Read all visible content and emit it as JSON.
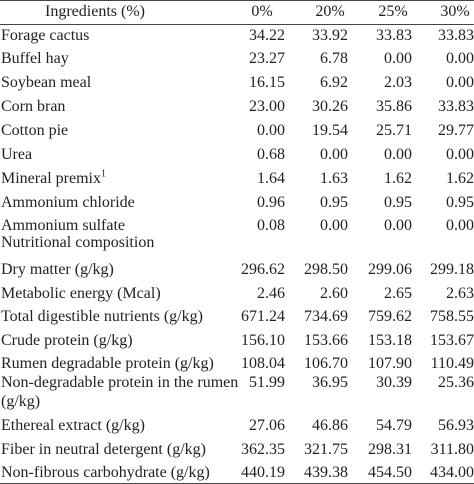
{
  "table": {
    "header": [
      "Ingredients (%)",
      "0%",
      "20%",
      "25%",
      "30%"
    ],
    "rows": [
      {
        "label": "Forage cactus",
        "values": [
          "34.22",
          "33.92",
          "33.83",
          "33.83"
        ]
      },
      {
        "label": "Buffel hay",
        "values": [
          "23.27",
          "6.78",
          "0.00",
          "0.00"
        ]
      },
      {
        "label": "Soybean meal",
        "values": [
          "16.15",
          "6.92",
          "2.03",
          "0.00"
        ]
      },
      {
        "label": "Corn bran",
        "values": [
          "23.00",
          "30.26",
          "35.86",
          "33.83"
        ]
      },
      {
        "label": "Cotton pie",
        "values": [
          "0.00",
          "19.54",
          "25.71",
          "29.77"
        ]
      },
      {
        "label": "Urea",
        "values": [
          "0.68",
          "0.00",
          "0.00",
          "0.00"
        ]
      },
      {
        "label": "Mineral premix",
        "note": "1",
        "values": [
          "1.64",
          "1.63",
          "1.62",
          "1.62"
        ]
      },
      {
        "label": "Ammonium chloride",
        "values": [
          "0.96",
          "0.95",
          "0.95",
          "0.95"
        ]
      },
      {
        "label": "Ammonium sulfate",
        "values": [
          "0.08",
          "0.00",
          "0.00",
          "0.00"
        ]
      },
      {
        "label": "Nutritional composition",
        "values": []
      },
      {
        "label": "Dry matter (g/kg)",
        "values": [
          "296.62",
          "298.50",
          "299.06",
          "299.18"
        ]
      },
      {
        "label": "Metabolic energy (Mcal)",
        "values": [
          "2.46",
          "2.60",
          "2.65",
          "2.63"
        ]
      },
      {
        "label": "Total digestible nutrients (g/kg)",
        "values": [
          "671.24",
          "734.69",
          "759.62",
          "758.55"
        ]
      },
      {
        "label": "Crude protein (g/kg)",
        "values": [
          "156.10",
          "153.66",
          "153.18",
          "153.67"
        ]
      },
      {
        "label": "Rumen degradable protein (g/kg)",
        "values": [
          "108.04",
          "106.70",
          "107.90",
          "110.49"
        ]
      },
      {
        "label": "Non-degradable protein in the rumen (g/kg)",
        "values": [
          "51.99",
          "36.95",
          "30.39",
          "25.36"
        ]
      },
      {
        "label": "Ethereal extract (g/kg)",
        "values": [
          "27.06",
          "46.86",
          "54.79",
          "56.93"
        ]
      },
      {
        "label": "Fiber in neutral detergent (g/kg)",
        "values": [
          "362.35",
          "321.75",
          "298.31",
          "311.80"
        ]
      },
      {
        "label": "Non-fibrous carbohydrate (g/kg)",
        "values": [
          "440.19",
          "439.38",
          "454.50",
          "434.00"
        ]
      }
    ]
  }
}
